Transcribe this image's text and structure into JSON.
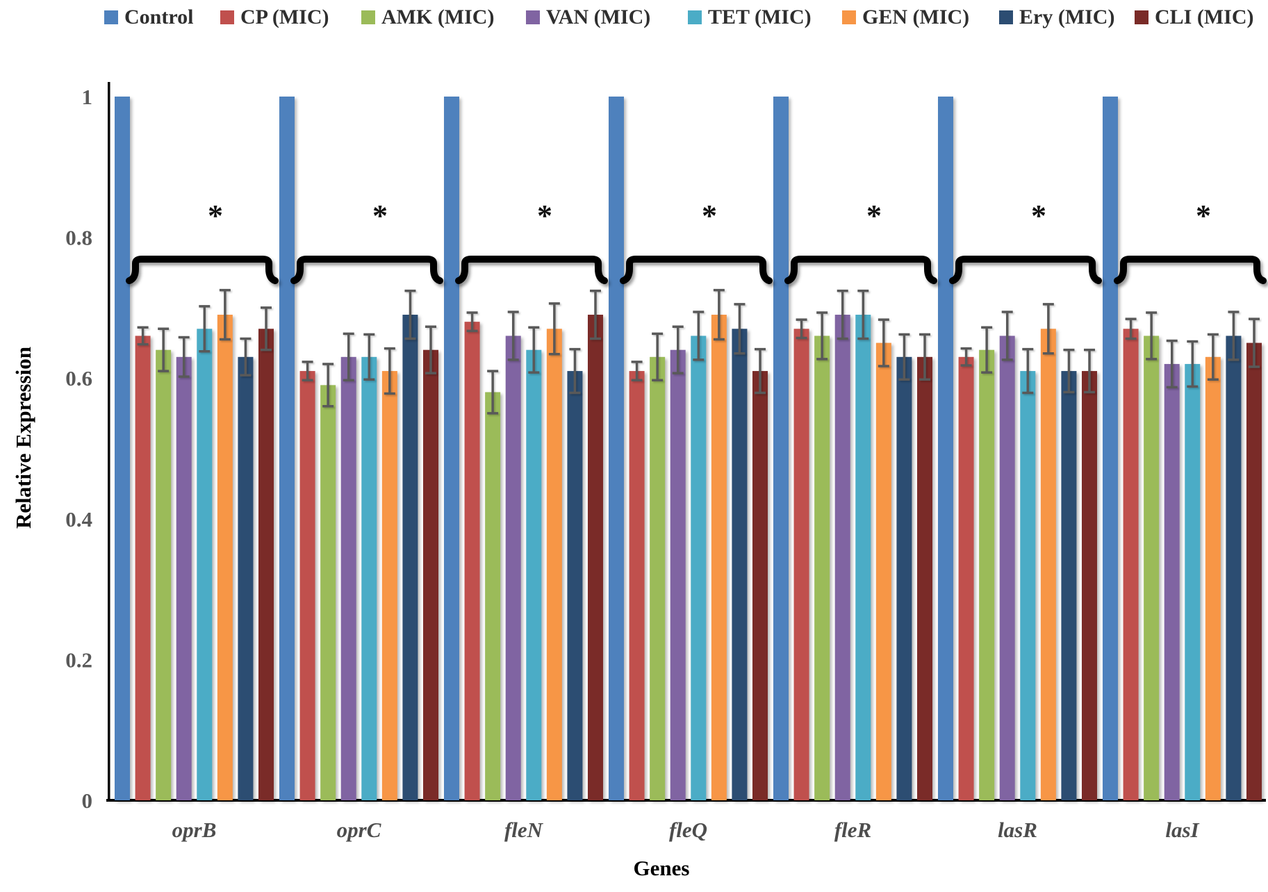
{
  "figure": {
    "y_axis_title": "Relative Expression",
    "x_axis_title": "Genes",
    "significance_marker": "*"
  },
  "chart_data": {
    "type": "bar",
    "title": "",
    "xlabel": "Genes",
    "ylabel": "Relative Expression",
    "ylim": [
      0,
      1
    ],
    "yticks": [
      0,
      0.2,
      0.4,
      0.6,
      0.8,
      1
    ],
    "ytick_labels": [
      "0",
      "0.2",
      "0.4",
      "0.6",
      "0.8",
      "1"
    ],
    "grid": false,
    "legend_position": "top",
    "categories": [
      "oprB",
      "oprC",
      "fleN",
      "fleQ",
      "fleR",
      "lasR",
      "lasI"
    ],
    "series": [
      {
        "name": "Control",
        "color": "#4E81BD",
        "values": [
          1,
          1,
          1,
          1,
          1,
          1,
          1
        ],
        "errors": [
          0,
          0,
          0,
          0,
          0,
          0,
          0
        ]
      },
      {
        "name": "CP (MIC)",
        "color": "#C0504D",
        "values": [
          0.66,
          0.61,
          0.68,
          0.61,
          0.67,
          0.63,
          0.67
        ],
        "errors": [
          0.012,
          0.013,
          0.013,
          0.013,
          0.013,
          0.012,
          0.014
        ]
      },
      {
        "name": "AMK (MIC)",
        "color": "#9BBB59",
        "values": [
          0.64,
          0.59,
          0.58,
          0.63,
          0.66,
          0.64,
          0.66
        ],
        "errors": [
          0.03,
          0.03,
          0.03,
          0.033,
          0.033,
          0.032,
          0.033
        ]
      },
      {
        "name": "VAN (MIC)",
        "color": "#8064A2",
        "values": [
          0.63,
          0.63,
          0.66,
          0.64,
          0.69,
          0.66,
          0.62
        ],
        "errors": [
          0.028,
          0.033,
          0.034,
          0.033,
          0.034,
          0.034,
          0.033
        ]
      },
      {
        "name": "TET (MIC)",
        "color": "#4BACC6",
        "values": [
          0.67,
          0.63,
          0.64,
          0.66,
          0.69,
          0.61,
          0.62
        ],
        "errors": [
          0.032,
          0.032,
          0.032,
          0.034,
          0.034,
          0.031,
          0.032
        ]
      },
      {
        "name": "GEN (MIC)",
        "color": "#F79646",
        "values": [
          0.69,
          0.61,
          0.67,
          0.69,
          0.65,
          0.67,
          0.63
        ],
        "errors": [
          0.035,
          0.032,
          0.036,
          0.035,
          0.033,
          0.035,
          0.032
        ]
      },
      {
        "name": "Ery (MIC)",
        "color": "#2C4D72",
        "values": [
          0.63,
          0.69,
          0.61,
          0.67,
          0.63,
          0.61,
          0.66
        ],
        "errors": [
          0.026,
          0.034,
          0.031,
          0.035,
          0.032,
          0.03,
          0.034
        ]
      },
      {
        "name": "CLI (MIC)",
        "color": "#7A2B28",
        "values": [
          0.67,
          0.64,
          0.69,
          0.61,
          0.63,
          0.61,
          0.65
        ],
        "errors": [
          0.03,
          0.033,
          0.034,
          0.031,
          0.032,
          0.03,
          0.034
        ]
      }
    ],
    "annotations": {
      "significance_marker": "*",
      "bracket_over_series": [
        "CP (MIC)",
        "AMK (MIC)",
        "VAN (MIC)",
        "TET (MIC)",
        "GEN (MIC)",
        "Ery (MIC)",
        "CLI (MIC)"
      ],
      "bracket_on_every_category": true
    }
  }
}
